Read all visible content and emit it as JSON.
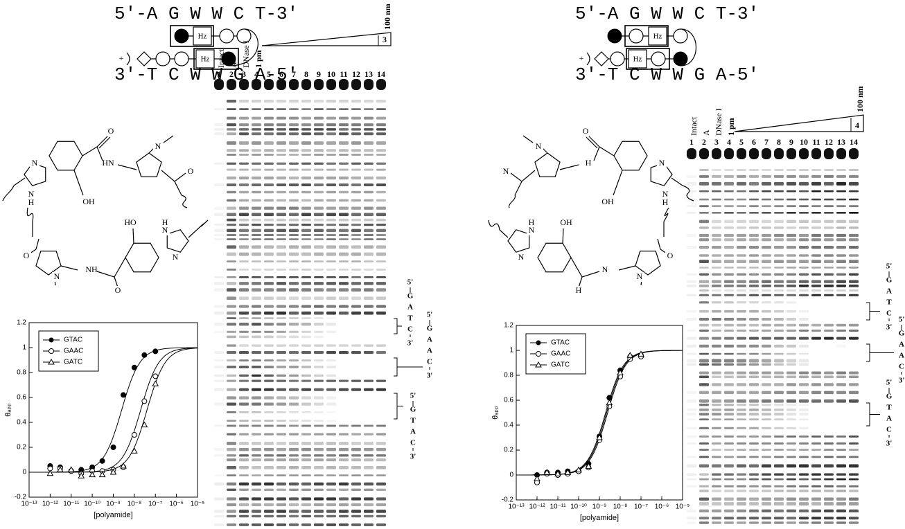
{
  "chart_data": [
    {
      "type": "scatter",
      "xlabel": "[polyamide]",
      "ylabel": "θₐₚₚ",
      "log_x": true,
      "legend": "upper left",
      "xlim": [
        1e-13,
        1e-05
      ],
      "xticks": [
        {
          "value": 1e-13,
          "label": "10⁻¹³"
        },
        {
          "value": 1e-12,
          "label": "10⁻¹²"
        },
        {
          "value": 1e-11,
          "label": "10⁻¹¹"
        },
        {
          "value": 1e-10,
          "label": "10⁻¹⁰"
        },
        {
          "value": 1e-09,
          "label": "10⁻⁹"
        },
        {
          "value": 1e-08,
          "label": "10⁻⁸"
        },
        {
          "value": 1e-07,
          "label": "10⁻⁷"
        },
        {
          "value": 1e-06,
          "label": "10⁻⁶"
        },
        {
          "value": 1e-05,
          "label": "10⁻⁵"
        }
      ],
      "ylim": [
        -0.2,
        1.2
      ],
      "yticks": [
        -0.2,
        0,
        0.2,
        0.4,
        0.6,
        0.8,
        1,
        1.2
      ],
      "series": [
        {
          "name": "GTAC",
          "marker": "filled-circle",
          "color": "#000000",
          "ka": 400000000.0,
          "x": [
            1e-12,
            3e-12,
            1e-11,
            3e-11,
            1e-10,
            3e-10,
            1e-09,
            3e-09,
            1e-08,
            3e-08,
            1e-07
          ],
          "values": [
            0.05,
            0.04,
            0.01,
            0.02,
            0.04,
            0.09,
            0.2,
            0.62,
            0.84,
            0.94,
            0.97
          ]
        },
        {
          "name": "GAAC",
          "marker": "open-circle",
          "color": "#000000",
          "ka": 50000000.0,
          "x": [
            1e-12,
            3e-12,
            1e-11,
            3e-11,
            1e-10,
            3e-10,
            1e-09,
            3e-09,
            1e-08,
            3e-08,
            1e-07
          ],
          "values": [
            0.03,
            0.03,
            0.01,
            -0.01,
            0.01,
            0.01,
            0.02,
            0.04,
            0.3,
            0.57,
            0.77
          ]
        },
        {
          "name": "GATC",
          "marker": "open-triangle",
          "color": "#000000",
          "ka": 25000000.0,
          "x": [
            1e-12,
            3e-12,
            1e-11,
            3e-11,
            1e-10,
            3e-10,
            1e-09,
            3e-09,
            1e-08,
            3e-08,
            1e-07
          ],
          "values": [
            -0.01,
            0.02,
            0.02,
            -0.03,
            -0.02,
            -0.02,
            0.0,
            0.05,
            0.17,
            0.38,
            0.71
          ]
        }
      ]
    },
    {
      "type": "scatter",
      "xlabel": "[polyamide]",
      "ylabel": "θₐₚₚ",
      "log_x": true,
      "legend": "upper left",
      "xlim": [
        1e-13,
        1e-05
      ],
      "xticks": [
        {
          "value": 1e-13,
          "label": "10⁻¹³"
        },
        {
          "value": 1e-12,
          "label": "10⁻¹²"
        },
        {
          "value": 1e-11,
          "label": "10⁻¹¹"
        },
        {
          "value": 1e-10,
          "label": "10⁻¹⁰"
        },
        {
          "value": 1e-09,
          "label": "10⁻⁹"
        },
        {
          "value": 1e-08,
          "label": "10⁻⁸"
        },
        {
          "value": 1e-07,
          "label": "10⁻⁷"
        },
        {
          "value": 1e-06,
          "label": "10⁻⁶"
        },
        {
          "value": 1e-05,
          "label": "10⁻⁵"
        }
      ],
      "ylim": [
        -0.2,
        1.2
      ],
      "yticks": [
        -0.2,
        0,
        0.2,
        0.4,
        0.6,
        0.8,
        1,
        1.2
      ],
      "series": [
        {
          "name": "GTAC",
          "marker": "filled-circle",
          "color": "#000000",
          "ka": 500000000.0,
          "x": [
            1e-12,
            3e-12,
            1e-11,
            3e-11,
            1e-10,
            3e-10,
            1e-09,
            3e-09,
            1e-08,
            3e-08,
            1e-07
          ],
          "values": [
            0.0,
            0.02,
            0.02,
            0.03,
            0.03,
            0.09,
            0.31,
            0.62,
            0.84,
            0.95,
            0.96
          ]
        },
        {
          "name": "GAAC",
          "marker": "open-circle",
          "color": "#000000",
          "ka": 400000000.0,
          "x": [
            1e-12,
            3e-12,
            1e-11,
            3e-11,
            1e-10,
            3e-10,
            1e-09,
            3e-09,
            1e-08,
            3e-08,
            1e-07
          ],
          "values": [
            -0.06,
            0.01,
            0.0,
            0.01,
            0.03,
            0.06,
            0.28,
            0.55,
            0.79,
            0.93,
            0.95
          ]
        },
        {
          "name": "GATC",
          "marker": "open-triangle",
          "color": "#000000",
          "ka": 450000000.0,
          "x": [
            1e-12,
            3e-12,
            1e-11,
            3e-11,
            1e-10,
            3e-10,
            1e-09,
            3e-09,
            1e-08,
            3e-08,
            1e-07
          ],
          "values": [
            -0.03,
            0.02,
            0.01,
            0.02,
            0.04,
            0.07,
            0.3,
            0.58,
            0.82,
            0.96,
            0.97
          ]
        }
      ]
    }
  ],
  "panels": [
    {
      "sequence_top": "5'-A G W W C T-3'",
      "sequence_bottom": "3'-T C W W G A-5'",
      "hz": [
        "Hz",
        "Hz"
      ],
      "charge": "+",
      "atoms": [
        "N",
        "N",
        "H",
        "OH",
        "O",
        "HN",
        "N",
        "O",
        "O",
        "N",
        "NH",
        "HO",
        "H",
        "N",
        "N",
        "O"
      ],
      "gel": {
        "lanes": [
          1,
          2,
          3,
          4,
          5,
          6,
          7,
          8,
          9,
          10,
          11,
          12,
          13,
          14
        ],
        "lane_labels": [
          "Intact",
          "A",
          "DNase I"
        ],
        "low": "1 pm",
        "high": "100 nm",
        "compound": "3"
      },
      "sites": [
        [
          "5'",
          "G",
          "A",
          "T",
          "C",
          "3'"
        ],
        [
          "5'",
          "G",
          "A",
          "A",
          "C",
          "3'"
        ],
        [
          "5'",
          "G",
          "T",
          "A",
          "C",
          "3'"
        ]
      ]
    },
    {
      "sequence_top": "5'-A G W W C T-3'",
      "sequence_bottom": "3'-T C W W G A-5'",
      "hz": [
        "Hz",
        "Hz"
      ],
      "charge": "+",
      "atoms": [
        "N",
        "N",
        "H",
        "OH",
        "O",
        "H",
        "N",
        "N",
        "O",
        "N",
        "N",
        "OH",
        "H",
        "N",
        "N",
        "H"
      ],
      "gel": {
        "lanes": [
          1,
          2,
          3,
          4,
          5,
          6,
          7,
          8,
          9,
          10,
          11,
          12,
          13,
          14
        ],
        "lane_labels": [
          "Intact",
          "A",
          "DNase I"
        ],
        "low": "1 pm",
        "high": "100 nm",
        "compound": "4"
      },
      "sites": [
        [
          "5'",
          "G",
          "A",
          "T",
          "C",
          "3'"
        ],
        [
          "5'",
          "G",
          "A",
          "A",
          "C",
          "3'"
        ],
        [
          "5'",
          "G",
          "T",
          "A",
          "C",
          "3'"
        ]
      ]
    }
  ]
}
